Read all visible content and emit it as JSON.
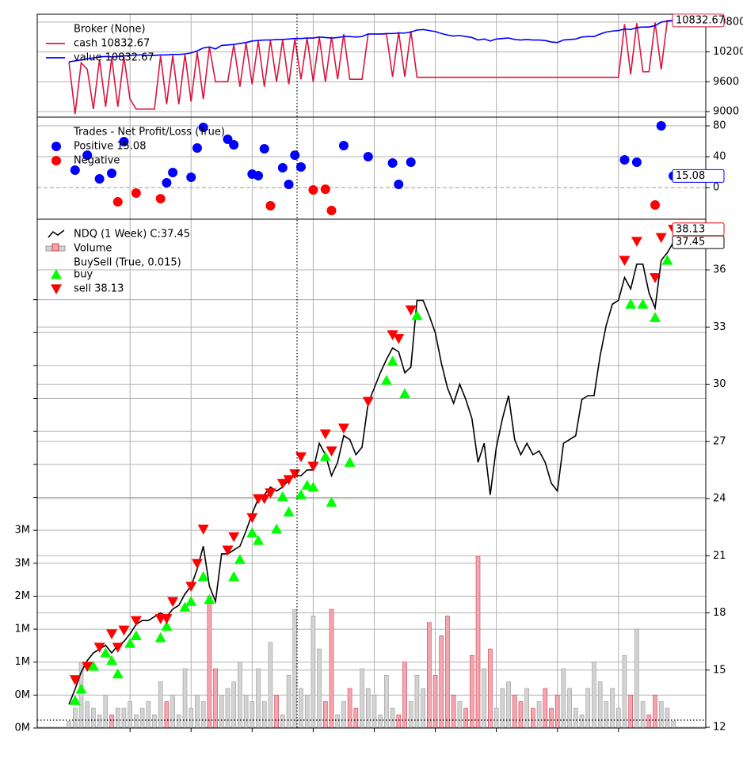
{
  "chart_data": [
    {
      "type": "line",
      "legend_title": "Broker (None)",
      "xlim": [
        -5.2,
        104.3
      ],
      "xticks": [
        10,
        20,
        30,
        40,
        50,
        60,
        70,
        80,
        90
      ],
      "grid": true,
      "y2lim": [
        8889,
        10958
      ],
      "y2ticks": [
        9000,
        9600,
        10200,
        10800
      ],
      "x": [
        0,
        1,
        2,
        3,
        4,
        5,
        6,
        7,
        8,
        9,
        10,
        11,
        12,
        13,
        14,
        15,
        16,
        17,
        18,
        19,
        20,
        21,
        22,
        23,
        24,
        25,
        26,
        27,
        28,
        29,
        30,
        31,
        32,
        33,
        34,
        35,
        36,
        37,
        38,
        39,
        40,
        41,
        42,
        43,
        44,
        45,
        46,
        47,
        48,
        49,
        50,
        51,
        52,
        53,
        54,
        55,
        56,
        57,
        58,
        59,
        60,
        61,
        62,
        63,
        64,
        65,
        66,
        67,
        68,
        69,
        70,
        71,
        72,
        73,
        74,
        75,
        76,
        77,
        78,
        79,
        80,
        81,
        82,
        83,
        84,
        85,
        86,
        87,
        88,
        89,
        90,
        91,
        92,
        93,
        94,
        95,
        96,
        97,
        98,
        99
      ],
      "series": [
        {
          "name": "cash 10832.67",
          "type": "line",
          "color": "#dc143c",
          "axis": "y2",
          "tag": true,
          "values": [
            10000,
            8950,
            9980,
            9850,
            9050,
            10050,
            9100,
            10080,
            9100,
            10100,
            9250,
            9050,
            9050,
            9050,
            9050,
            10120,
            9150,
            10130,
            9150,
            10150,
            9200,
            10200,
            9250,
            10300,
            9600,
            9600,
            9600,
            10350,
            9500,
            10380,
            9550,
            10420,
            9500,
            10430,
            9600,
            10440,
            9550,
            10460,
            9650,
            10480,
            9600,
            10500,
            9600,
            10500,
            9650,
            10560,
            9650,
            9650,
            9650,
            10560,
            10560,
            10560,
            10560,
            9700,
            10600,
            9700,
            10620,
            9690,
            9690,
            9690,
            9690,
            9690,
            9690,
            9690,
            9690,
            9690,
            9690,
            9690,
            9690,
            9690,
            9690,
            9690,
            9690,
            9690,
            9690,
            9690,
            9690,
            9690,
            9690,
            9690,
            9690,
            9690,
            9690,
            9690,
            9690,
            9690,
            9690,
            9690,
            9690,
            9690,
            9690,
            10760,
            9750,
            10780,
            9800,
            9800,
            10790,
            9850,
            10830,
            10832.67
          ]
        },
        {
          "name": "value 10832.67",
          "type": "line",
          "color": "#0000ff",
          "axis": "y2",
          "values": [
            10000,
            10020,
            10040,
            10060,
            10080,
            10100,
            10110,
            10100,
            10110,
            10120,
            10130,
            10140,
            10140,
            10130,
            10130,
            10140,
            10140,
            10150,
            10150,
            10160,
            10180,
            10220,
            10280,
            10300,
            10260,
            10330,
            10340,
            10350,
            10370,
            10390,
            10420,
            10430,
            10440,
            10440,
            10450,
            10450,
            10460,
            10470,
            10470,
            10480,
            10480,
            10500,
            10490,
            10480,
            10490,
            10510,
            10510,
            10500,
            10510,
            10560,
            10560,
            10560,
            10570,
            10570,
            10580,
            10580,
            10600,
            10640,
            10650,
            10630,
            10610,
            10570,
            10540,
            10520,
            10530,
            10510,
            10490,
            10440,
            10460,
            10420,
            10460,
            10470,
            10480,
            10450,
            10440,
            10450,
            10440,
            10440,
            10430,
            10400,
            10390,
            10440,
            10450,
            10460,
            10500,
            10510,
            10510,
            10560,
            10600,
            10620,
            10630,
            10660,
            10650,
            10690,
            10700,
            10700,
            10730,
            10800,
            10820,
            10832.67
          ]
        }
      ]
    },
    {
      "type": "scatter",
      "legend_title": "Trades - Net Profit/Loss (True)",
      "xlim": [
        -5.2,
        104.3
      ],
      "xticks": [
        10,
        20,
        30,
        40,
        50,
        60,
        70,
        80,
        90
      ],
      "grid": true,
      "zero_line": true,
      "y2lim": [
        -41,
        91.3
      ],
      "y2ticks": [
        0,
        40,
        80
      ],
      "series": [
        {
          "name": "Positive 15.08",
          "type": "scatter",
          "marker": "o",
          "color": "#0000ff",
          "axis": "y2",
          "tag": true,
          "x": [
            1,
            3,
            5,
            7,
            9,
            16,
            17,
            20,
            21,
            22,
            26,
            27,
            30,
            31,
            32,
            35,
            36,
            37,
            38,
            45,
            49,
            53,
            54,
            56,
            91,
            93,
            97,
            99
          ],
          "values": [
            22.6,
            42,
            11.3,
            18.5,
            59.5,
            6.2,
            19.5,
            13.3,
            51.3,
            78,
            62.6,
            55.4,
            17.4,
            15.4,
            50.3,
            25.6,
            4.1,
            42,
            26.7,
            54.4,
            40,
            31.8,
            4.1,
            32.8,
            35.9,
            32.8,
            80,
            15.08
          ]
        },
        {
          "name": "Negative",
          "type": "scatter",
          "marker": "o",
          "color": "#ff0000",
          "axis": "y2",
          "x": [
            8,
            11,
            15,
            33,
            40,
            42,
            43,
            96
          ],
          "values": [
            -18.5,
            -7.2,
            -14.4,
            -23.6,
            -3.1,
            -2.1,
            -29.7,
            -22.6
          ]
        }
      ]
    },
    {
      "type": "line",
      "group_label": "BuySell (True, 0.015)",
      "xlim": [
        -5.2,
        104.3
      ],
      "xticks": [
        10,
        20,
        30,
        40,
        50,
        60,
        70,
        80,
        90
      ],
      "grid": true,
      "ylim": [
        0,
        7720000
      ],
      "yticks": [
        {
          "value": 0,
          "label": "0M"
        },
        {
          "value": 500000,
          "label": "0M"
        },
        {
          "value": 1000000,
          "label": "1M"
        },
        {
          "value": 1500000,
          "label": "1M"
        },
        {
          "value": 2000000,
          "label": "2M"
        },
        {
          "value": 2500000,
          "label": "3M"
        },
        {
          "value": 3000000,
          "label": "3M"
        },
        {
          "value": 3500000,
          "label": null
        },
        {
          "value": 4000000,
          "label": null
        },
        {
          "value": 4500000,
          "label": null
        },
        {
          "value": 5000000,
          "label": null
        },
        {
          "value": 5500000,
          "label": null
        },
        {
          "value": 6000000,
          "label": null
        },
        {
          "value": 6500000,
          "label": null
        }
      ],
      "y2lim": [
        11.96,
        38.66
      ],
      "y2ticks": [
        12,
        15,
        18,
        21,
        24,
        27,
        30,
        33,
        36
      ],
      "x": [
        0,
        1,
        2,
        3,
        4,
        5,
        6,
        7,
        8,
        9,
        10,
        11,
        12,
        13,
        14,
        15,
        16,
        17,
        18,
        19,
        20,
        21,
        22,
        23,
        24,
        25,
        26,
        27,
        28,
        29,
        30,
        31,
        32,
        33,
        34,
        35,
        36,
        37,
        38,
        39,
        40,
        41,
        42,
        43,
        44,
        45,
        46,
        47,
        48,
        49,
        50,
        51,
        52,
        53,
        54,
        55,
        56,
        57,
        58,
        59,
        60,
        61,
        62,
        63,
        64,
        65,
        66,
        67,
        68,
        69,
        70,
        71,
        72,
        73,
        74,
        75,
        76,
        77,
        78,
        79,
        80,
        81,
        82,
        83,
        84,
        85,
        86,
        87,
        88,
        89,
        90,
        91,
        92,
        93,
        94,
        95,
        96,
        97,
        98,
        99
      ],
      "series": [
        {
          "name": "NDQ (1 Week) C:37.45",
          "type": "line",
          "color": "#000000",
          "axis": "y2",
          "tag": true,
          "values": [
            13.2,
            14.0,
            14.9,
            15.5,
            15.9,
            16.1,
            16.3,
            15.9,
            16.3,
            16.5,
            16.9,
            17.4,
            17.6,
            17.6,
            17.8,
            18.0,
            17.8,
            18.2,
            18.4,
            19.0,
            19.4,
            20.3,
            21.5,
            19.4,
            18.6,
            21.1,
            21.1,
            21.3,
            21.5,
            22.3,
            23.2,
            24.0,
            24.2,
            24.6,
            24.4,
            24.6,
            25.0,
            25.2,
            25.2,
            25.5,
            25.5,
            26.9,
            26.3,
            25.2,
            25.9,
            27.3,
            27.1,
            26.3,
            26.7,
            29.0,
            29.8,
            30.6,
            31.3,
            31.9,
            31.7,
            30.6,
            30.9,
            34.4,
            34.4,
            33.6,
            32.7,
            31.1,
            29.8,
            29.0,
            30.0,
            29.2,
            28.2,
            25.9,
            26.9,
            24.2,
            26.7,
            28.2,
            29.4,
            27.1,
            26.3,
            26.9,
            26.3,
            26.5,
            25.9,
            24.8,
            24.4,
            26.9,
            27.1,
            27.3,
            29.2,
            29.4,
            29.4,
            31.5,
            33.1,
            34.2,
            34.4,
            35.6,
            35.0,
            36.3,
            36.3,
            34.8,
            34.0,
            36.5,
            36.9,
            37.45
          ]
        },
        {
          "name": "Volume",
          "type": "bar",
          "color_up": "#d3d3d3",
          "color_down": "#f4a6b0",
          "edge_up": "#999999",
          "edge_down": "#d04050",
          "axis": "y",
          "values": [
            100000,
            300000,
            1000000,
            400000,
            300000,
            200000,
            500000,
            200000,
            300000,
            300000,
            400000,
            200000,
            300000,
            400000,
            200000,
            700000,
            400000,
            500000,
            200000,
            900000,
            300000,
            500000,
            400000,
            2000000,
            900000,
            500000,
            600000,
            700000,
            1000000,
            500000,
            400000,
            900000,
            400000,
            1300000,
            500000,
            200000,
            800000,
            1800000,
            600000,
            500000,
            1700000,
            1200000,
            400000,
            1800000,
            200000,
            400000,
            600000,
            300000,
            900000,
            600000,
            500000,
            200000,
            800000,
            300000,
            200000,
            1000000,
            400000,
            800000,
            600000,
            1600000,
            800000,
            1400000,
            1700000,
            500000,
            400000,
            300000,
            1100000,
            2600000,
            900000,
            1200000,
            300000,
            600000,
            700000,
            500000,
            400000,
            600000,
            300000,
            400000,
            600000,
            300000,
            500000,
            900000,
            600000,
            300000,
            200000,
            600000,
            1000000,
            700000,
            400000,
            600000,
            300000,
            1100000,
            500000,
            1500000,
            400000,
            200000,
            500000,
            400000,
            300000,
            100000
          ]
        },
        {
          "name": "buy",
          "type": "scatter",
          "marker": "^",
          "color": "#00ff00",
          "axis": "y2",
          "x": [
            1,
            2,
            4,
            6,
            7,
            8,
            10,
            11,
            15,
            16,
            19,
            20,
            22,
            23,
            27,
            28,
            30,
            31,
            34,
            35,
            36,
            38,
            39,
            40,
            42,
            43,
            46,
            52,
            53,
            55,
            57,
            92,
            94,
            96,
            98
          ],
          "values": [
            13.4,
            14.0,
            15.2,
            15.9,
            15.5,
            14.8,
            16.4,
            16.8,
            16.7,
            17.3,
            18.3,
            18.6,
            19.9,
            18.7,
            19.9,
            20.8,
            22.2,
            21.8,
            22.4,
            24.1,
            23.3,
            24.2,
            24.7,
            24.6,
            26.2,
            23.8,
            25.9,
            30.2,
            31.2,
            29.5,
            33.6,
            34.2,
            34.2,
            33.5,
            36.5
          ]
        },
        {
          "name": "sell 38.13",
          "type": "scatter",
          "marker": "v",
          "color": "#ff0000",
          "axis": "y2",
          "tag": true,
          "x": [
            1,
            3,
            5,
            7,
            8,
            9,
            11,
            15,
            16,
            17,
            20,
            21,
            22,
            26,
            27,
            30,
            31,
            32,
            33,
            35,
            36,
            37,
            38,
            40,
            42,
            43,
            45,
            49,
            53,
            54,
            56,
            91,
            93,
            96,
            97,
            99
          ],
          "values": [
            14.5,
            15.2,
            16.2,
            16.9,
            16.2,
            17.1,
            17.6,
            17.7,
            17.7,
            18.6,
            19.4,
            20.6,
            22.4,
            21.3,
            22.0,
            23.0,
            24.0,
            24.0,
            24.3,
            24.8,
            25.0,
            25.3,
            26.2,
            25.7,
            27.4,
            26.5,
            27.7,
            29.1,
            32.6,
            32.4,
            33.9,
            36.5,
            37.5,
            35.6,
            37.7,
            38.13
          ]
        }
      ]
    }
  ]
}
